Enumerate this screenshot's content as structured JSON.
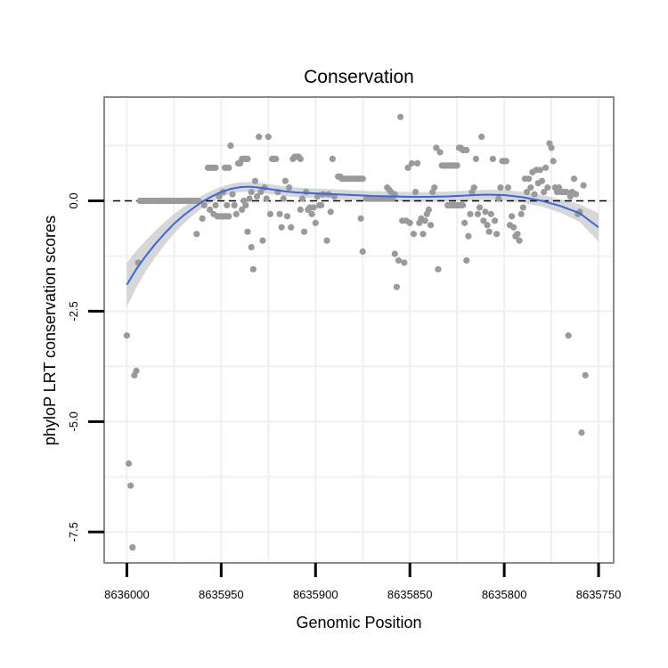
{
  "chart_data": {
    "type": "scatter",
    "title": "Conservation",
    "xlabel": "Genomic Position",
    "ylabel": "phyloP LRT conservation scores",
    "x_reversed": true,
    "xlim": [
      8636012,
      8635742
    ],
    "ylim": [
      -8.2,
      2.35
    ],
    "x_ticks": [
      8636000,
      8635950,
      8635900,
      8635850,
      8635800,
      8635750
    ],
    "x_tick_labels": [
      "8636000",
      "8635950",
      "8635900",
      "8635850",
      "8635800",
      "8635750"
    ],
    "y_ticks": [
      0,
      -2.5,
      -5,
      -7.5
    ],
    "y_tick_labels": [
      "0.0",
      "-2.5",
      "-5.0",
      "-7.5"
    ],
    "reference_line": {
      "y": 0,
      "style": "dashed",
      "color": "#000000"
    },
    "grid": true,
    "colors": {
      "points": "#9a9a9a",
      "smooth_line": "#3a66e0",
      "confidence_band": "#c6c6c6",
      "panel_border": "#8a8a8a",
      "grid": "#f0f0f0"
    },
    "points": [
      [
        8636000,
        -3.05
      ],
      [
        8635999,
        -5.95
      ],
      [
        8635998,
        -6.45
      ],
      [
        8635997,
        -7.85
      ],
      [
        8635996,
        -3.95
      ],
      [
        8635995,
        -3.85
      ],
      [
        8635994,
        -1.4
      ],
      [
        8635993,
        0
      ],
      [
        8635992,
        0
      ],
      [
        8635991,
        0
      ],
      [
        8635990,
        0
      ],
      [
        8635989,
        0
      ],
      [
        8635988,
        0
      ],
      [
        8635987,
        0
      ],
      [
        8635986,
        0
      ],
      [
        8635985,
        0
      ],
      [
        8635984,
        0
      ],
      [
        8635983,
        0
      ],
      [
        8635982,
        0
      ],
      [
        8635981,
        0
      ],
      [
        8635980,
        0
      ],
      [
        8635979,
        0
      ],
      [
        8635978,
        0
      ],
      [
        8635977,
        0
      ],
      [
        8635976,
        0
      ],
      [
        8635975,
        0
      ],
      [
        8635974,
        0
      ],
      [
        8635973,
        0
      ],
      [
        8635972,
        0
      ],
      [
        8635971,
        0
      ],
      [
        8635970,
        0
      ],
      [
        8635969,
        0
      ],
      [
        8635968,
        0
      ],
      [
        8635967,
        0
      ],
      [
        8635966,
        0
      ],
      [
        8635965,
        0
      ],
      [
        8635964,
        0
      ],
      [
        8635963,
        0
      ],
      [
        8635962,
        0
      ],
      [
        8635963,
        -0.75
      ],
      [
        8635960,
        -0.4
      ],
      [
        8635959,
        -0.1
      ],
      [
        8635957,
        0.75
      ],
      [
        8635956,
        0.75
      ],
      [
        8635955,
        0.75
      ],
      [
        8635954,
        0.75
      ],
      [
        8635953,
        0.75
      ],
      [
        8635956,
        -0.2
      ],
      [
        8635954,
        -0.3
      ],
      [
        8635953,
        -0.1
      ],
      [
        8635952,
        -0.35
      ],
      [
        8635951,
        -0.35
      ],
      [
        8635950,
        -0.35
      ],
      [
        8635949,
        -0.35
      ],
      [
        8635948,
        -0.35
      ],
      [
        8635947,
        -0.35
      ],
      [
        8635946,
        -0.35
      ],
      [
        8635951,
        0.1
      ],
      [
        8635949,
        0.2
      ],
      [
        8635947,
        -0.1
      ],
      [
        8635948,
        0.75
      ],
      [
        8635947,
        0.75
      ],
      [
        8635946,
        0.75
      ],
      [
        8635945,
        1.25
      ],
      [
        8635944,
        0.15
      ],
      [
        8635943,
        -0.1
      ],
      [
        8635942,
        -0.3
      ],
      [
        8635941,
        0.85
      ],
      [
        8635940,
        0.85
      ],
      [
        8635939,
        0.95
      ],
      [
        8635938,
        0.95
      ],
      [
        8635937,
        0.95
      ],
      [
        8635936,
        0.95
      ],
      [
        8635939,
        -0.2
      ],
      [
        8635938,
        0
      ],
      [
        8635937,
        -0.1
      ],
      [
        8635936,
        -0.7
      ],
      [
        8635935,
        0.05
      ],
      [
        8635934,
        0.2
      ],
      [
        8635934,
        -1.05
      ],
      [
        8635933,
        -1.55
      ],
      [
        8635932,
        0.45
      ],
      [
        8635931,
        0.1
      ],
      [
        8635930,
        1.45
      ],
      [
        8635929,
        0.2
      ],
      [
        8635928,
        -0.9
      ],
      [
        8635927,
        0.3
      ],
      [
        8635926,
        0.05
      ],
      [
        8635925,
        1.45
      ],
      [
        8635924,
        -0.3
      ],
      [
        8635923,
        0.95
      ],
      [
        8635922,
        0.95
      ],
      [
        8635921,
        0.95
      ],
      [
        8635920,
        0.2
      ],
      [
        8635919,
        -0.3
      ],
      [
        8635918,
        -0.6
      ],
      [
        8635917,
        0.05
      ],
      [
        8635916,
        0.45
      ],
      [
        8635915,
        -0.35
      ],
      [
        8635914,
        0.3
      ],
      [
        8635913,
        -0.6
      ],
      [
        8635912,
        0.95
      ],
      [
        8635911,
        1.0
      ],
      [
        8635910,
        1.0
      ],
      [
        8635909,
        1.0
      ],
      [
        8635908,
        0.95
      ],
      [
        8635908,
        -0.2
      ],
      [
        8635907,
        0.05
      ],
      [
        8635906,
        -0.7
      ],
      [
        8635905,
        0.2
      ],
      [
        8635904,
        -0.2
      ],
      [
        8635903,
        -0.15
      ],
      [
        8635902,
        -0.3
      ],
      [
        8635901,
        -0.15
      ],
      [
        8635900,
        -0.5
      ],
      [
        8635899,
        0.1
      ],
      [
        8635898,
        -0.1
      ],
      [
        8635897,
        -0.1
      ],
      [
        8635896,
        0.15
      ],
      [
        8635894,
        -0.9
      ],
      [
        8635893,
        0.15
      ],
      [
        8635892,
        -0.25
      ],
      [
        8635891,
        0.95
      ],
      [
        8635890,
        0.1
      ],
      [
        8635888,
        0.55
      ],
      [
        8635887,
        0.55
      ],
      [
        8635886,
        0.5
      ],
      [
        8635885,
        0.5
      ],
      [
        8635884,
        0.5
      ],
      [
        8635883,
        0.5
      ],
      [
        8635882,
        0.5
      ],
      [
        8635881,
        0.5
      ],
      [
        8635880,
        0.5
      ],
      [
        8635879,
        0.5
      ],
      [
        8635878,
        0.5
      ],
      [
        8635877,
        0.5
      ],
      [
        8635876,
        0.5
      ],
      [
        8635875,
        0.5
      ],
      [
        8635876,
        -0.4
      ],
      [
        8635875,
        -1.15
      ],
      [
        8635873,
        0.05
      ],
      [
        8635872,
        0.05
      ],
      [
        8635871,
        0.05
      ],
      [
        8635870,
        0.05
      ],
      [
        8635869,
        0.05
      ],
      [
        8635868,
        0.05
      ],
      [
        8635867,
        0.05
      ],
      [
        8635866,
        0.05
      ],
      [
        8635865,
        0.05
      ],
      [
        8635864,
        0.05
      ],
      [
        8635863,
        0.05
      ],
      [
        8635862,
        0.05
      ],
      [
        8635861,
        0.05
      ],
      [
        8635860,
        0.05
      ],
      [
        8635859,
        0.05
      ],
      [
        8635862,
        0.3
      ],
      [
        8635861,
        0.25
      ],
      [
        8635860,
        0.2
      ],
      [
        8635858,
        0.15
      ],
      [
        8635858,
        -1.2
      ],
      [
        8635857,
        -1.95
      ],
      [
        8635856,
        -1.35
      ],
      [
        8635855,
        1.9
      ],
      [
        8635854,
        -0.45
      ],
      [
        8635853,
        -1.4
      ],
      [
        8635852,
        -0.45
      ],
      [
        8635851,
        0.75
      ],
      [
        8635850,
        -0.5
      ],
      [
        8635849,
        0.85
      ],
      [
        8635848,
        -0.75
      ],
      [
        8635847,
        0.2
      ],
      [
        8635846,
        0.85
      ],
      [
        8635845,
        -0.5
      ],
      [
        8635844,
        -0.4
      ],
      [
        8635843,
        -0.75
      ],
      [
        8635842,
        -0.45
      ],
      [
        8635841,
        -0.3
      ],
      [
        8635840,
        -0.2
      ],
      [
        8635839,
        -0.55
      ],
      [
        8635838,
        0.2
      ],
      [
        8635837,
        0.3
      ],
      [
        8635836,
        1.2
      ],
      [
        8635835,
        -1.55
      ],
      [
        8635834,
        1.1
      ],
      [
        8635833,
        0.8
      ],
      [
        8635832,
        0.8
      ],
      [
        8635831,
        0.8
      ],
      [
        8635830,
        0.8
      ],
      [
        8635829,
        0.8
      ],
      [
        8635828,
        0.8
      ],
      [
        8635827,
        0.8
      ],
      [
        8635826,
        0.8
      ],
      [
        8635825,
        0.8
      ],
      [
        8635830,
        -0.1
      ],
      [
        8635829,
        -0.1
      ],
      [
        8635828,
        -0.1
      ],
      [
        8635827,
        -0.1
      ],
      [
        8635826,
        -0.1
      ],
      [
        8635825,
        -0.1
      ],
      [
        8635824,
        -0.1
      ],
      [
        8635823,
        -0.1
      ],
      [
        8635822,
        -0.1
      ],
      [
        8635824,
        1.2
      ],
      [
        8635823,
        1.2
      ],
      [
        8635822,
        1.15
      ],
      [
        8635821,
        1.15
      ],
      [
        8635820,
        1.15
      ],
      [
        8635821,
        -0.5
      ],
      [
        8635820,
        -1.35
      ],
      [
        8635819,
        -0.8
      ],
      [
        8635818,
        -0.3
      ],
      [
        8635817,
        0.2
      ],
      [
        8635816,
        0.3
      ],
      [
        8635815,
        0.95
      ],
      [
        8635814,
        -0.3
      ],
      [
        8635813,
        -0.15
      ],
      [
        8635812,
        1.45
      ],
      [
        8635811,
        -0.45
      ],
      [
        8635810,
        -0.25
      ],
      [
        8635809,
        -0.55
      ],
      [
        8635808,
        -0.7
      ],
      [
        8635807,
        -0.3
      ],
      [
        8635806,
        0.95
      ],
      [
        8635805,
        -0.45
      ],
      [
        8635804,
        -0.75
      ],
      [
        8635803,
        0.05
      ],
      [
        8635802,
        0.3
      ],
      [
        8635801,
        0.9
      ],
      [
        8635800,
        0.9
      ],
      [
        8635799,
        0.9
      ],
      [
        8635798,
        0.3
      ],
      [
        8635797,
        -0.55
      ],
      [
        8635796,
        -0.35
      ],
      [
        8635795,
        -0.6
      ],
      [
        8635794,
        -0.8
      ],
      [
        8635793,
        -0.75
      ],
      [
        8635792,
        -0.9
      ],
      [
        8635791,
        -0.3
      ],
      [
        8635790,
        -0.15
      ],
      [
        8635789,
        0.5
      ],
      [
        8635788,
        0.2
      ],
      [
        8635787,
        0.5
      ],
      [
        8635786,
        0.3
      ],
      [
        8635785,
        0.65
      ],
      [
        8635784,
        0.15
      ],
      [
        8635783,
        0.7
      ],
      [
        8635782,
        0.4
      ],
      [
        8635781,
        0.7
      ],
      [
        8635780,
        0.45
      ],
      [
        8635779,
        0.2
      ],
      [
        8635778,
        0.75
      ],
      [
        8635777,
        0.3
      ],
      [
        8635776,
        1.3
      ],
      [
        8635775,
        1.2
      ],
      [
        8635774,
        0.9
      ],
      [
        8635773,
        0.3
      ],
      [
        8635772,
        0.2
      ],
      [
        8635771,
        0.3
      ],
      [
        8635770,
        0.2
      ],
      [
        8635769,
        0.2
      ],
      [
        8635768,
        0.2
      ],
      [
        8635767,
        0.2
      ],
      [
        8635766,
        -3.05
      ],
      [
        8635765,
        0.1
      ],
      [
        8635764,
        0.2
      ],
      [
        8635763,
        0.5
      ],
      [
        8635762,
        0.15
      ],
      [
        8635761,
        -0.3
      ],
      [
        8635760,
        -0.25
      ],
      [
        8635759,
        -5.25
      ],
      [
        8635758,
        0.35
      ],
      [
        8635757,
        -3.95
      ]
    ],
    "smooth": {
      "x": [
        8636000,
        8635995,
        8635990,
        8635985,
        8635980,
        8635975,
        8635970,
        8635965,
        8635960,
        8635955,
        8635950,
        8635945,
        8635940,
        8635935,
        8635930,
        8635925,
        8635920,
        8635915,
        8635910,
        8635905,
        8635900,
        8635890,
        8635880,
        8635870,
        8635860,
        8635850,
        8635840,
        8635830,
        8635820,
        8635810,
        8635800,
        8635790,
        8635780,
        8635770,
        8635760,
        8635750
      ],
      "y": [
        -1.9,
        -1.55,
        -1.25,
        -0.98,
        -0.74,
        -0.52,
        -0.33,
        -0.17,
        -0.02,
        0.1,
        0.2,
        0.27,
        0.31,
        0.32,
        0.3,
        0.27,
        0.24,
        0.21,
        0.19,
        0.18,
        0.17,
        0.15,
        0.13,
        0.11,
        0.1,
        0.09,
        0.09,
        0.1,
        0.12,
        0.14,
        0.13,
        0.08,
        0.0,
        -0.12,
        -0.28,
        -0.6
      ],
      "se": [
        0.5,
        0.42,
        0.35,
        0.3,
        0.26,
        0.22,
        0.19,
        0.16,
        0.14,
        0.13,
        0.12,
        0.11,
        0.11,
        0.11,
        0.11,
        0.11,
        0.11,
        0.11,
        0.11,
        0.11,
        0.11,
        0.11,
        0.11,
        0.11,
        0.11,
        0.11,
        0.11,
        0.11,
        0.11,
        0.11,
        0.12,
        0.12,
        0.13,
        0.15,
        0.2,
        0.32
      ]
    }
  }
}
